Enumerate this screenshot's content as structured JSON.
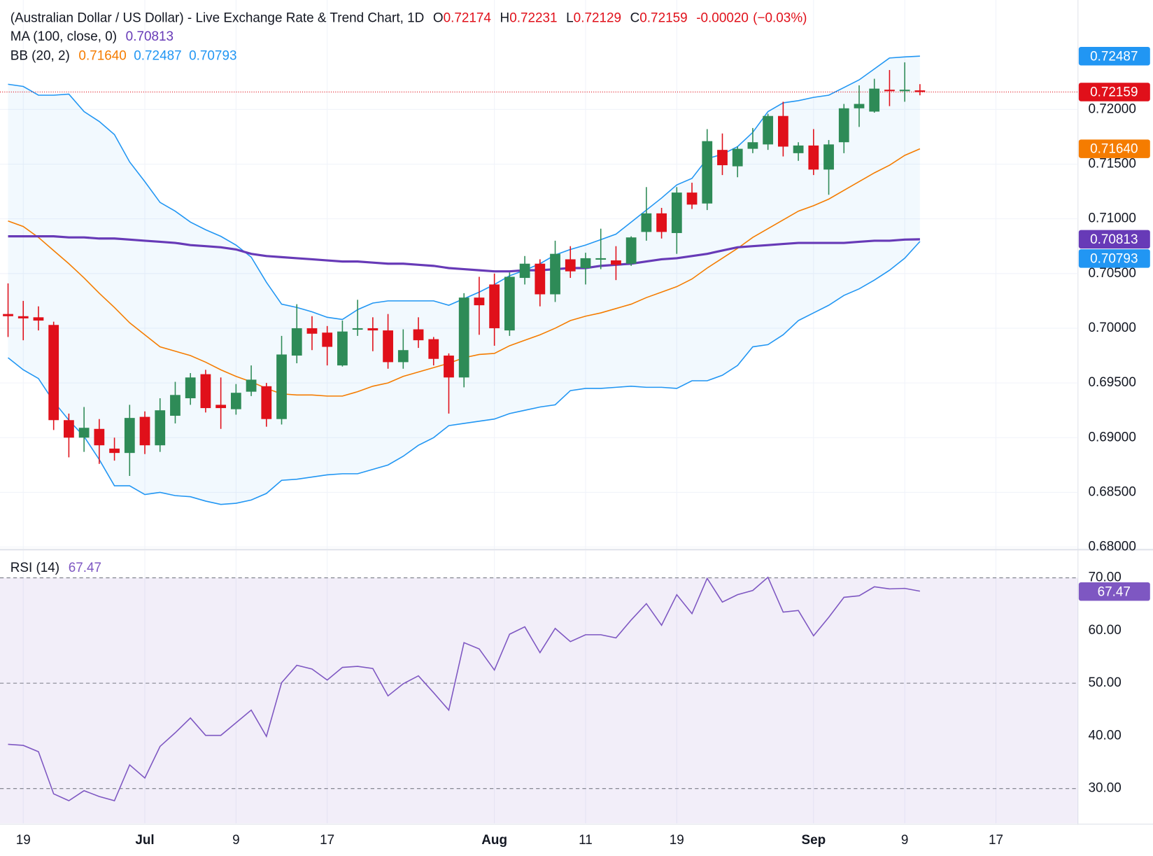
{
  "chart_data": {
    "type": "candlestick",
    "title": "(Australian Dollar / US Dollar) - Live Exchange Rate & Trend Chart, 1D",
    "ohlc_labels": [
      "O",
      "H",
      "L",
      "C"
    ],
    "change": "-0.00020",
    "change_percent": "(−0.03%)",
    "up_color": "#2e8b57",
    "down_color": "#e0101a",
    "grid": true,
    "xlim": [
      -0.53,
      70.4
    ],
    "xticks": [
      {
        "value": 1,
        "label": "19"
      },
      {
        "value": 9,
        "label": "Jul"
      },
      {
        "value": 15,
        "label": "9"
      },
      {
        "value": 21,
        "label": "17"
      },
      {
        "value": 32,
        "label": "Aug"
      },
      {
        "value": 38,
        "label": "11"
      },
      {
        "value": 44,
        "label": "19"
      },
      {
        "value": 53,
        "label": "Sep"
      },
      {
        "value": 59,
        "label": "9"
      },
      {
        "value": 65,
        "label": "17"
      }
    ],
    "ylim": [
      0.68,
      0.73
    ],
    "yticks": [
      {
        "value": 0.68,
        "label": "0.68000"
      },
      {
        "value": 0.685,
        "label": "0.68500"
      },
      {
        "value": 0.69,
        "label": "0.69000"
      },
      {
        "value": 0.695,
        "label": "0.69500"
      },
      {
        "value": 0.7,
        "label": "0.70000"
      },
      {
        "value": 0.705,
        "label": "0.70500"
      },
      {
        "value": 0.71,
        "label": "0.71000"
      },
      {
        "value": 0.715,
        "label": "0.71500"
      },
      {
        "value": 0.72,
        "label": "0.72000"
      }
    ],
    "open": [
      0.7013,
      0.7011,
      0.701,
      0.7003,
      0.6916,
      0.69,
      0.6908,
      0.689,
      0.6886,
      0.6919,
      0.6893,
      0.692,
      0.6936,
      0.6958,
      0.693,
      0.6926,
      0.6942,
      0.6947,
      0.6917,
      0.6975,
      0.7,
      0.6996,
      0.6966,
      0.6999,
      0.7,
      0.6998,
      0.6969,
      0.6999,
      0.699,
      0.6975,
      0.6955,
      0.7028,
      0.704,
      0.6998,
      0.7046,
      0.7059,
      0.7031,
      0.7063,
      0.7055,
      0.7063,
      0.7062,
      0.7059,
      0.7088,
      0.7105,
      0.7087,
      0.7124,
      0.7114,
      0.7163,
      0.7148,
      0.7164,
      0.7168,
      0.7194,
      0.716,
      0.7167,
      0.7145,
      0.717,
      0.7201,
      0.7198,
      0.7218,
      0.7217,
      0.72174
    ],
    "high": [
      0.7041,
      0.7025,
      0.702,
      0.7006,
      0.6922,
      0.6928,
      0.6917,
      0.69,
      0.693,
      0.6924,
      0.6936,
      0.6951,
      0.6959,
      0.6962,
      0.6955,
      0.6949,
      0.6966,
      0.695,
      0.6993,
      0.7022,
      0.7011,
      0.7002,
      0.7007,
      0.7026,
      0.701,
      0.7013,
      0.6999,
      0.701,
      0.6992,
      0.6977,
      0.7032,
      0.7047,
      0.705,
      0.7051,
      0.7066,
      0.7063,
      0.708,
      0.7075,
      0.7069,
      0.7091,
      0.7075,
      0.7084,
      0.7129,
      0.711,
      0.7129,
      0.7133,
      0.7182,
      0.7178,
      0.7166,
      0.7183,
      0.7196,
      0.7207,
      0.717,
      0.7182,
      0.7172,
      0.7205,
      0.7222,
      0.7228,
      0.7236,
      0.7243,
      0.72231
    ],
    "low": [
      0.6992,
      0.6989,
      0.6998,
      0.6907,
      0.6882,
      0.6887,
      0.6876,
      0.6879,
      0.6865,
      0.6885,
      0.6887,
      0.6913,
      0.693,
      0.6923,
      0.6908,
      0.6921,
      0.6938,
      0.691,
      0.6912,
      0.6968,
      0.698,
      0.6966,
      0.6965,
      0.6993,
      0.6979,
      0.6963,
      0.6963,
      0.6982,
      0.6966,
      0.6922,
      0.6946,
      0.6994,
      0.6984,
      0.6993,
      0.704,
      0.702,
      0.7024,
      0.7046,
      0.704,
      0.7054,
      0.7044,
      0.7057,
      0.708,
      0.7082,
      0.7068,
      0.7109,
      0.7108,
      0.714,
      0.7138,
      0.716,
      0.7163,
      0.7157,
      0.7153,
      0.714,
      0.7122,
      0.716,
      0.7184,
      0.7197,
      0.7203,
      0.7207,
      0.72129
    ],
    "close": [
      0.7011,
      0.7009,
      0.7007,
      0.6916,
      0.69,
      0.6909,
      0.6893,
      0.6886,
      0.6918,
      0.6893,
      0.6925,
      0.6939,
      0.6955,
      0.6927,
      0.6927,
      0.6941,
      0.6953,
      0.6917,
      0.6976,
      0.7,
      0.6995,
      0.6983,
      0.6997,
      0.7,
      0.6998,
      0.6969,
      0.698,
      0.6989,
      0.6972,
      0.6955,
      0.7028,
      0.7021,
      0.7,
      0.7047,
      0.7059,
      0.7031,
      0.7068,
      0.7052,
      0.7064,
      0.7064,
      0.7058,
      0.7083,
      0.7105,
      0.7088,
      0.7124,
      0.7113,
      0.7171,
      0.7149,
      0.7164,
      0.717,
      0.7194,
      0.7166,
      0.7167,
      0.7145,
      0.7168,
      0.7201,
      0.7205,
      0.7219,
      0.7217,
      0.7218,
      0.72159
    ],
    "moving_average": {
      "name": "MA (100, close, 0)",
      "color": "#673ab7",
      "values": [
        0.7084,
        0.7084,
        0.7084,
        0.7084,
        0.7083,
        0.7083,
        0.7082,
        0.7082,
        0.7081,
        0.708,
        0.7079,
        0.7078,
        0.7076,
        0.7075,
        0.7074,
        0.7072,
        0.7068,
        0.7066,
        0.7065,
        0.7064,
        0.7063,
        0.7062,
        0.7061,
        0.7061,
        0.706,
        0.7059,
        0.7059,
        0.7058,
        0.7057,
        0.7055,
        0.7054,
        0.7053,
        0.7052,
        0.7052,
        0.7053,
        0.7053,
        0.7054,
        0.7055,
        0.7055,
        0.7057,
        0.7058,
        0.7059,
        0.7061,
        0.7063,
        0.7064,
        0.7066,
        0.7068,
        0.7071,
        0.7074,
        0.7075,
        0.7076,
        0.7077,
        0.7078,
        0.7078,
        0.7078,
        0.7078,
        0.7079,
        0.708,
        0.708,
        0.7081,
        0.70813
      ]
    },
    "bollinger": {
      "name": "BB (20, 2)",
      "fill": "#2196f3",
      "basis": {
        "color": "#f57c00",
        "values": [
          0.7098,
          0.7093,
          0.7083,
          0.7071,
          0.7059,
          0.7046,
          0.7032,
          0.7019,
          0.7005,
          0.6994,
          0.6983,
          0.6979,
          0.6975,
          0.6969,
          0.6962,
          0.6956,
          0.6951,
          0.6945,
          0.694,
          0.6939,
          0.6939,
          0.6938,
          0.6938,
          0.6942,
          0.6947,
          0.695,
          0.6956,
          0.696,
          0.6964,
          0.6968,
          0.6973,
          0.6976,
          0.6977,
          0.6984,
          0.6989,
          0.6994,
          0.7,
          0.7007,
          0.7011,
          0.7014,
          0.7018,
          0.7022,
          0.7028,
          0.7033,
          0.7038,
          0.7045,
          0.7055,
          0.7064,
          0.7073,
          0.7083,
          0.7091,
          0.7099,
          0.7107,
          0.7112,
          0.7118,
          0.7126,
          0.7134,
          0.7142,
          0.7149,
          0.7158,
          0.7164
        ],
        "value_labels": [
          null,
          null,
          null,
          null,
          null,
          null,
          null,
          null,
          null,
          null,
          null,
          null,
          null,
          null,
          null,
          null,
          null,
          null,
          null,
          null,
          null,
          null,
          null,
          null,
          null,
          null,
          null,
          null,
          null,
          null,
          null,
          null,
          null,
          null,
          null,
          null,
          null,
          null,
          null,
          null,
          null,
          null,
          null,
          null,
          null,
          null,
          null,
          null,
          null,
          null,
          null,
          null,
          null,
          null,
          null,
          null,
          null,
          null,
          null,
          null,
          "0.71640"
        ]
      },
      "upper": {
        "color": "#2196f3",
        "values": [
          0.7223,
          0.7221,
          0.7213,
          0.7213,
          0.7214,
          0.7198,
          0.7189,
          0.7177,
          0.7152,
          0.7134,
          0.7115,
          0.7107,
          0.7097,
          0.709,
          0.7084,
          0.7076,
          0.7065,
          0.7042,
          0.7022,
          0.7019,
          0.7015,
          0.701,
          0.7008,
          0.7017,
          0.7023,
          0.7025,
          0.7025,
          0.7025,
          0.7025,
          0.7021,
          0.7027,
          0.7033,
          0.704,
          0.7048,
          0.7053,
          0.7059,
          0.7067,
          0.7072,
          0.7076,
          0.7081,
          0.7086,
          0.7097,
          0.7108,
          0.7119,
          0.7131,
          0.7137,
          0.7155,
          0.7159,
          0.7166,
          0.7179,
          0.7198,
          0.7206,
          0.7208,
          0.7211,
          0.7213,
          0.722,
          0.7227,
          0.7237,
          0.7247,
          0.7248,
          0.72487
        ]
      },
      "lower": {
        "color": "#2196f3",
        "values": [
          0.6973,
          0.6962,
          0.6954,
          0.6933,
          0.6916,
          0.6901,
          0.688,
          0.6856,
          0.6856,
          0.6848,
          0.685,
          0.6847,
          0.6846,
          0.6842,
          0.6839,
          0.684,
          0.6843,
          0.6849,
          0.6861,
          0.6862,
          0.6864,
          0.6866,
          0.6867,
          0.6867,
          0.6871,
          0.6875,
          0.6883,
          0.6893,
          0.69,
          0.6911,
          0.6913,
          0.6915,
          0.6917,
          0.6922,
          0.6925,
          0.6928,
          0.693,
          0.6943,
          0.6945,
          0.6945,
          0.6946,
          0.6947,
          0.6946,
          0.6946,
          0.6945,
          0.6952,
          0.6952,
          0.6957,
          0.6966,
          0.6983,
          0.6985,
          0.6994,
          0.7007,
          0.7014,
          0.7021,
          0.703,
          0.7036,
          0.7044,
          0.7053,
          0.7064,
          0.70793
        ]
      }
    },
    "rsi": {
      "name": "RSI (14)",
      "color": "#7e57c2",
      "fill": "#7e57c2",
      "ylim": [
        23.4,
        75.35
      ],
      "yticks": [
        {
          "value": 30,
          "label": "30.00"
        },
        {
          "value": 40,
          "label": "40.00"
        },
        {
          "value": 50,
          "label": "50.00"
        },
        {
          "value": 60,
          "label": "60.00"
        },
        {
          "value": 70,
          "label": "70.00"
        }
      ],
      "levels": [
        30,
        50,
        70
      ],
      "values": [
        38.4,
        38.2,
        37.0,
        29.0,
        27.7,
        29.6,
        28.5,
        27.7,
        34.5,
        32.0,
        38.0,
        40.6,
        43.4,
        40.1,
        40.1,
        42.5,
        44.9,
        39.9,
        50.1,
        53.4,
        52.7,
        50.6,
        53.0,
        53.2,
        52.8,
        47.6,
        49.9,
        51.4,
        48.2,
        44.9,
        57.7,
        56.5,
        52.5,
        59.3,
        60.7,
        55.8,
        60.4,
        57.9,
        59.2,
        59.2,
        58.6,
        62.0,
        65.1,
        61.0,
        66.8,
        63.2,
        69.9,
        65.4,
        66.8,
        67.6,
        70.1,
        63.5,
        63.8,
        59.0,
        62.5,
        66.3,
        66.6,
        68.3,
        67.9,
        68.0,
        67.47
      ]
    }
  }
}
